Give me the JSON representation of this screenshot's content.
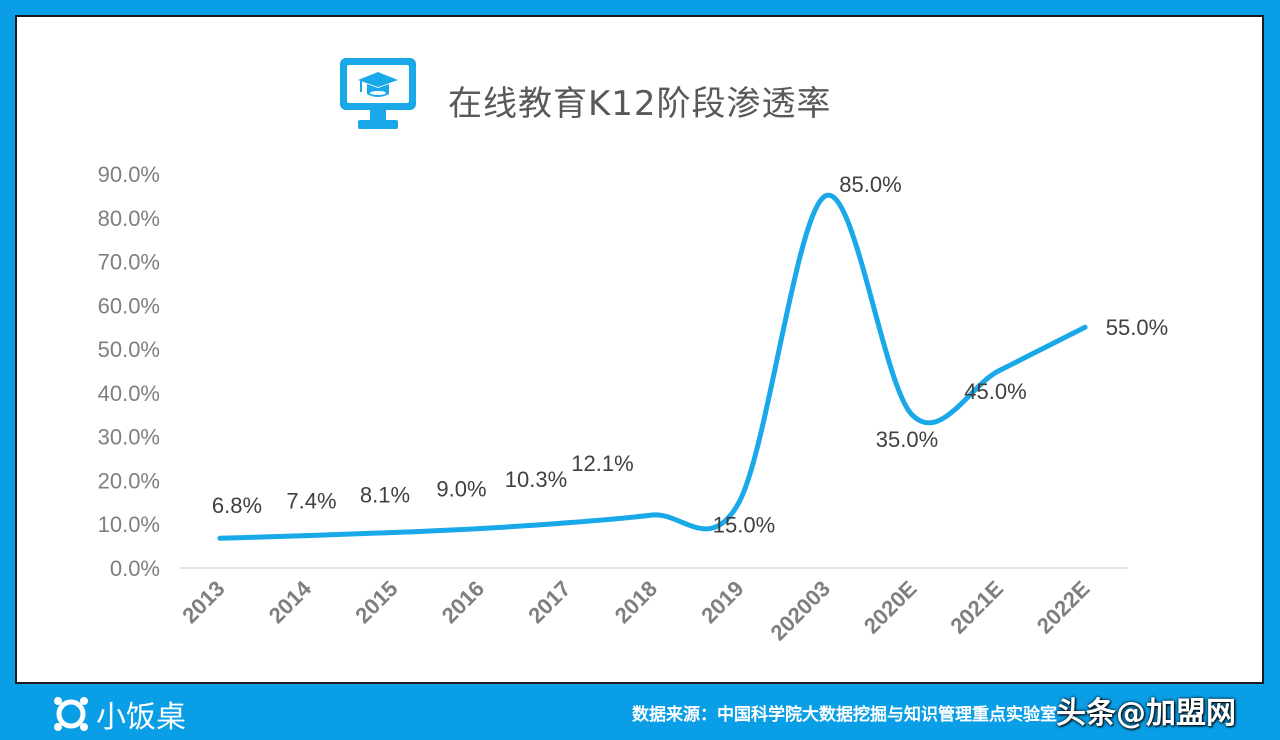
{
  "title": "在线教育K12阶段渗透率",
  "icon": "graduation-cap-monitor-icon",
  "colors": {
    "background": "#0a9ee6",
    "line": "#19a8e8",
    "axis_text": "#7f7f7f",
    "label_text": "#404040"
  },
  "chart_data": {
    "type": "line",
    "title": "在线教育K12阶段渗透率",
    "categories": [
      "2013",
      "2014",
      "2015",
      "2016",
      "2017",
      "2018",
      "2019",
      "202003",
      "2020E",
      "2021E",
      "2022E"
    ],
    "values": [
      6.8,
      7.4,
      8.1,
      9.0,
      10.3,
      12.1,
      15.0,
      85.0,
      35.0,
      45.0,
      55.0
    ],
    "data_labels": [
      "6.8%",
      "7.4%",
      "8.1%",
      "9.0%",
      "10.3%",
      "12.1%",
      "15.0%",
      "85.0%",
      "35.0%",
      "45.0%",
      "55.0%"
    ],
    "yticks": [
      "0.0%",
      "10.0%",
      "20.0%",
      "30.0%",
      "40.0%",
      "50.0%",
      "60.0%",
      "70.0%",
      "80.0%",
      "90.0%"
    ],
    "ylim": [
      0,
      90
    ],
    "grid": false,
    "smooth": true,
    "legend": "none"
  },
  "footer": {
    "logo_text": "小饭桌",
    "source": "数据来源：中国科学院大数据挖掘与知识管理重点实验室",
    "watermark": "头条@加盟网"
  }
}
